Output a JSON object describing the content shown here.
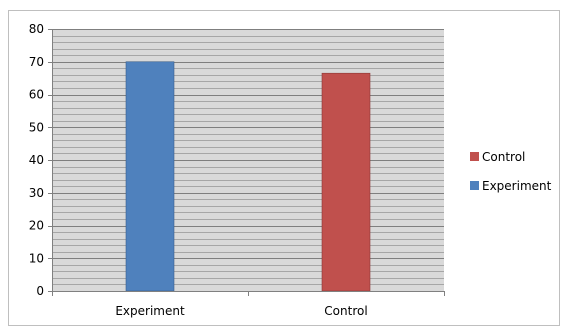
{
  "chart_data": {
    "type": "bar",
    "categories": [
      "Experiment",
      "Control"
    ],
    "series": [
      {
        "name": "Experiment",
        "values": [
          70,
          null
        ],
        "color": "#4f81bd"
      },
      {
        "name": "Control",
        "values": [
          null,
          66.5
        ],
        "color": "#c0504d"
      }
    ],
    "ylim": [
      0,
      80
    ],
    "yticks": [
      0,
      10,
      20,
      30,
      40,
      50,
      60,
      70,
      80
    ],
    "ytick_labels": [
      "0",
      "10",
      "20",
      "30",
      "40",
      "50",
      "60",
      "70",
      "80"
    ],
    "minor_grid_step": 2,
    "grid": true,
    "plot_background": "#d9d9d9",
    "legend": {
      "placement": "right",
      "entries": [
        {
          "label": "Control",
          "color": "#c0504d"
        },
        {
          "label": "Experiment",
          "color": "#4f81bd"
        }
      ]
    }
  }
}
